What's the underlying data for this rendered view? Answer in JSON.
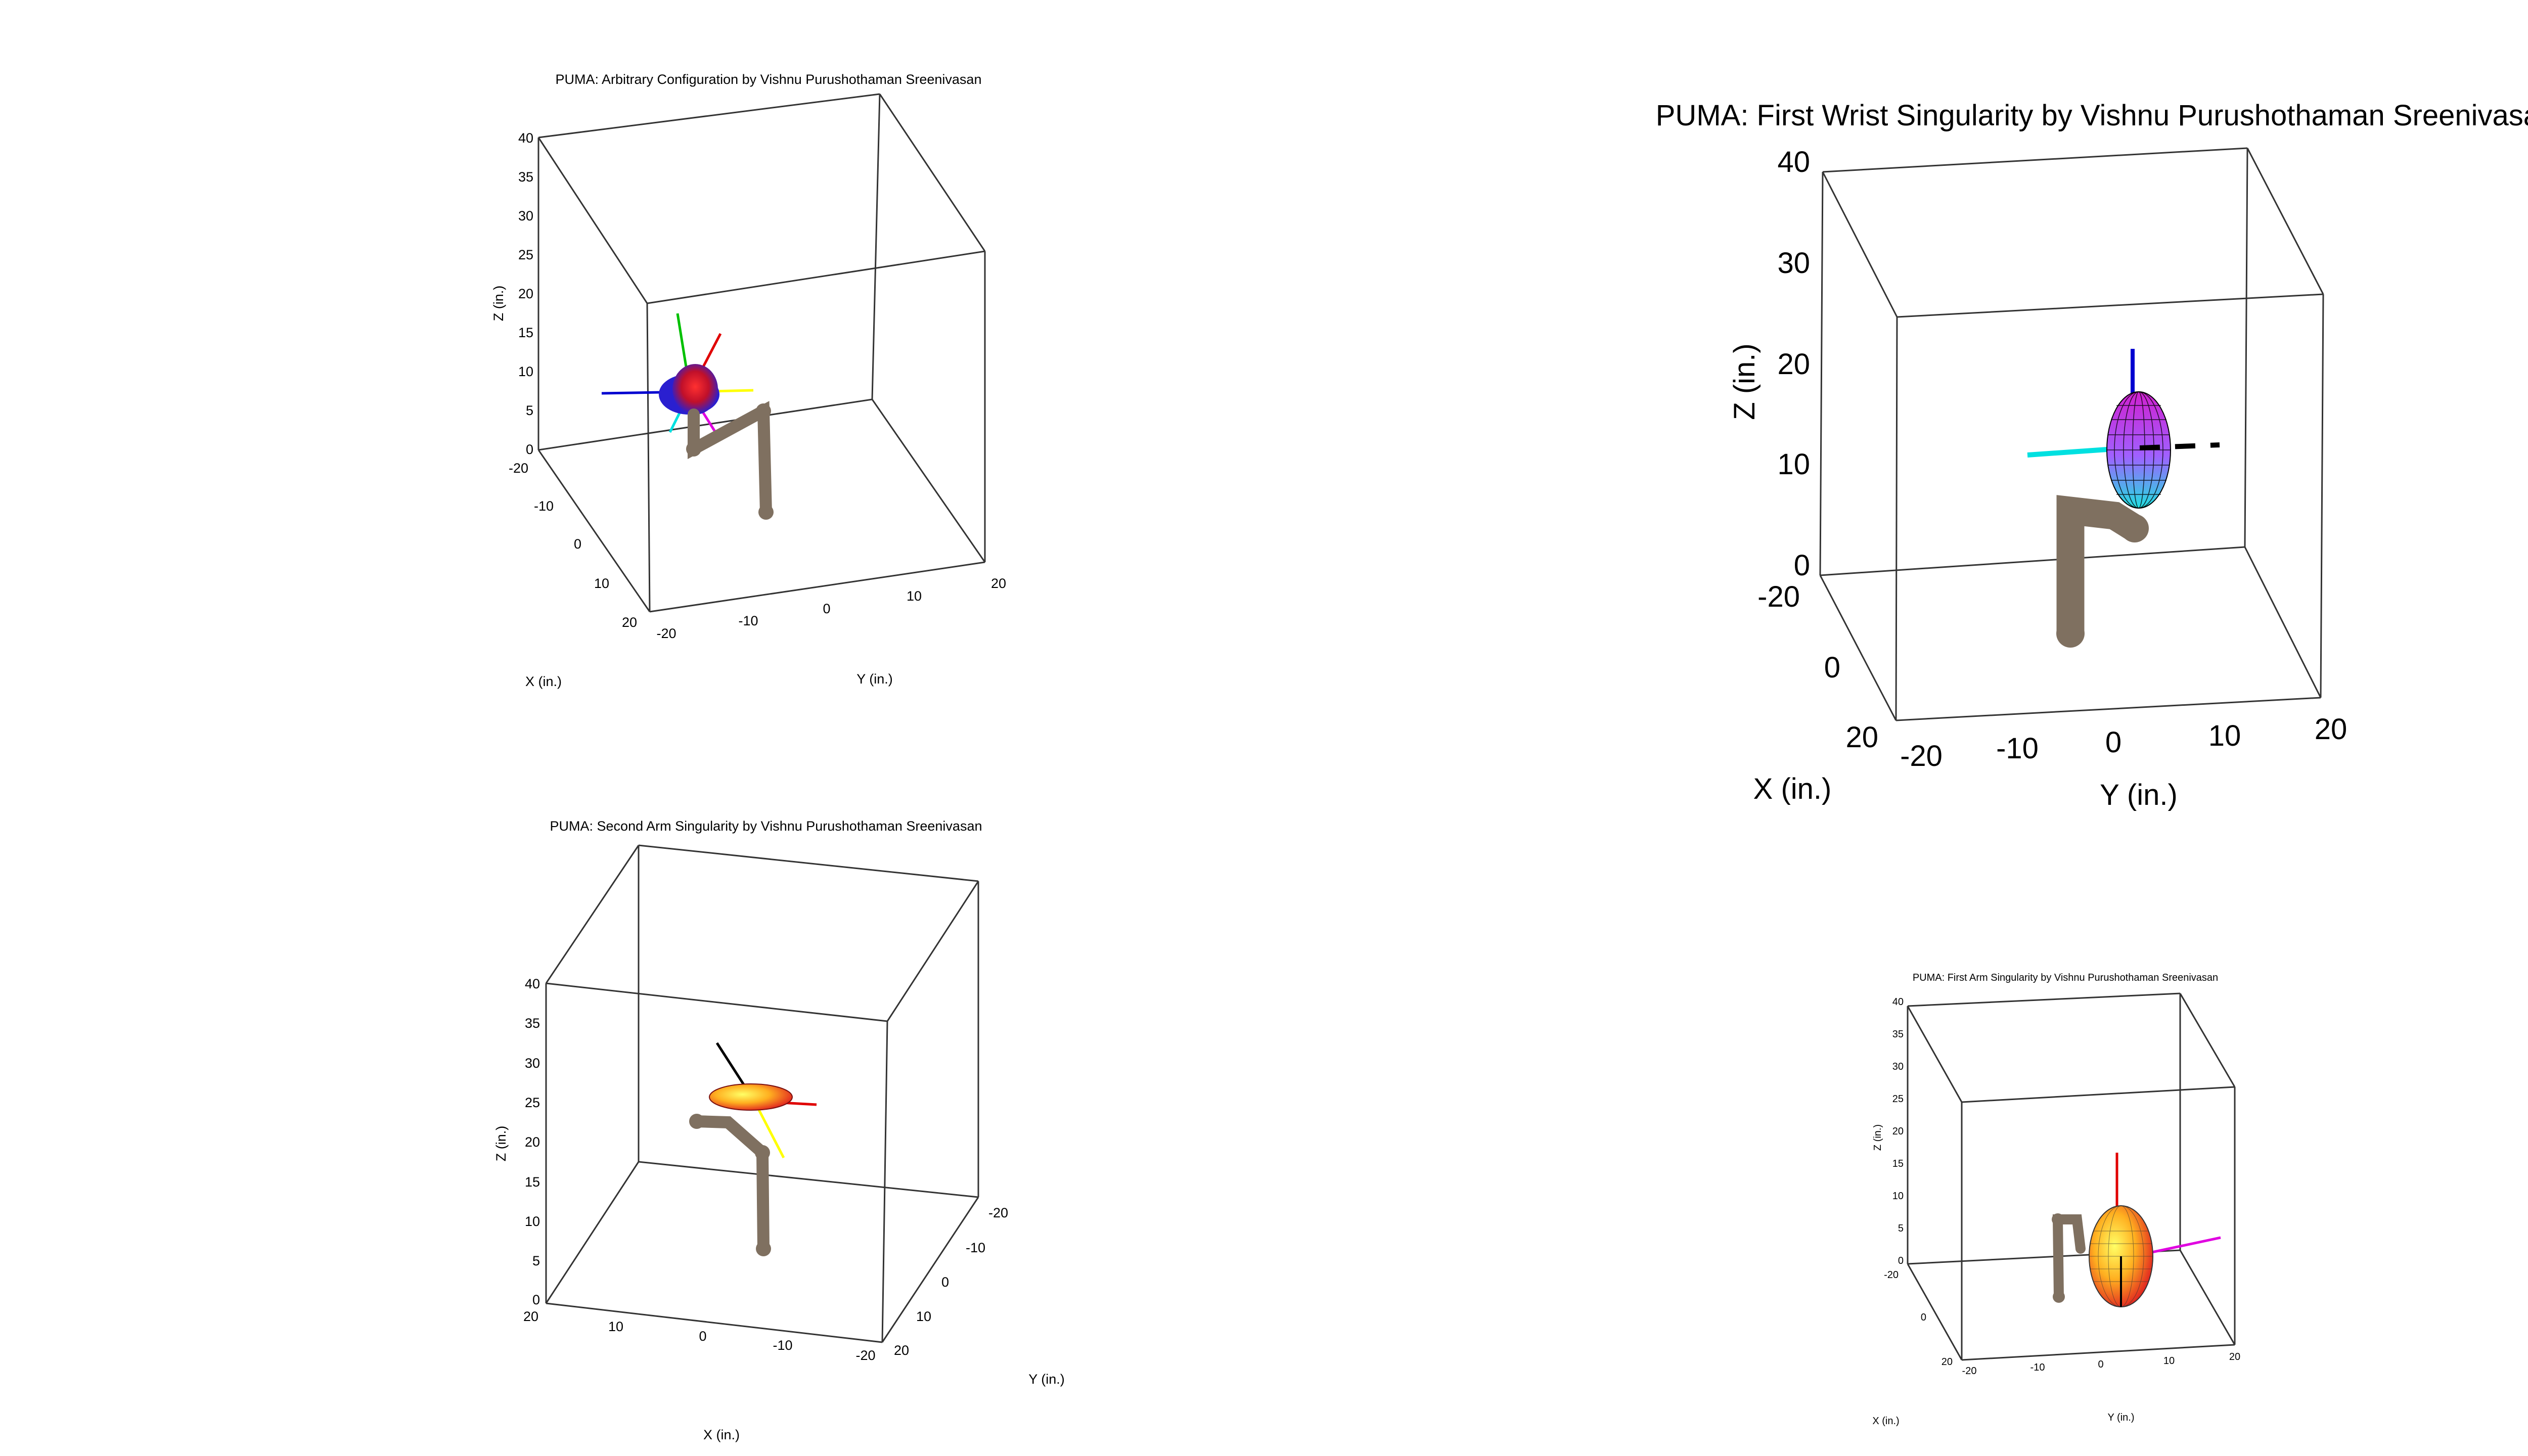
{
  "colors": {
    "robot": "#7f7060",
    "frame_red": "#e00000",
    "frame_green": "#00c000",
    "frame_blue": "#0000d0",
    "frame_yellow": "#ffff00",
    "frame_cyan": "#00e0e0",
    "frame_magenta": "#e000e0",
    "frame_black": "#000000"
  },
  "panels": {
    "arbitrary": {
      "title": "PUMA: Arbitrary Configuration by Vishnu Purushothaman Sreenivasan",
      "zlabel": "Z (in.)",
      "xlabel": "X (in.)",
      "ylabel": "Y (in.)",
      "zticks": [
        "40",
        "35",
        "30",
        "25",
        "20",
        "15",
        "10",
        "5",
        "0"
      ],
      "xticks": [
        "-20",
        "-10",
        "0",
        "10",
        "20"
      ],
      "yticks": [
        "-20",
        "-10",
        "0",
        "10",
        "20"
      ],
      "ellipsoid_style": "red-blue"
    },
    "first_wrist": {
      "title": "PUMA: First Wrist Singularity by Vishnu Purushothaman Sreenivasan",
      "zlabel": "Z (in.)",
      "xlabel": "X (in.)",
      "ylabel": "Y (in.)",
      "zticks": [
        "40",
        "30",
        "20",
        "10",
        "0"
      ],
      "xticks": [
        "-20",
        "0",
        "20"
      ],
      "yticks": [
        "-20",
        "-10",
        "0",
        "10",
        "20"
      ],
      "ellipsoid_style": "mesh-magenta-cyan"
    },
    "second_arm": {
      "title": "PUMA: Second Arm Singularity by Vishnu Purushothaman Sreenivasan",
      "zlabel": "Z (in.)",
      "xlabel": "X (in.)",
      "ylabel": "Y (in.)",
      "zticks": [
        "40",
        "35",
        "30",
        "25",
        "20",
        "15",
        "10",
        "5",
        "0"
      ],
      "xticks": [
        "20",
        "10",
        "0",
        "-10",
        "-20"
      ],
      "yticks": [
        "-20",
        "-10",
        "0",
        "10",
        "20"
      ],
      "ellipsoid_style": "red-yellow"
    },
    "first_arm": {
      "title": "PUMA: First Arm Singularity by Vishnu Purushothaman Sreenivasan",
      "zlabel": "Z (in.)",
      "xlabel": "X (in.)",
      "ylabel": "Y (in.)",
      "zticks": [
        "40",
        "35",
        "30",
        "25",
        "20",
        "15",
        "10",
        "5",
        "0"
      ],
      "xticks": [
        "-20",
        "0",
        "20"
      ],
      "yticks": [
        "-20",
        "-10",
        "0",
        "10",
        "20"
      ],
      "ellipsoid_style": "red-yellow"
    }
  }
}
